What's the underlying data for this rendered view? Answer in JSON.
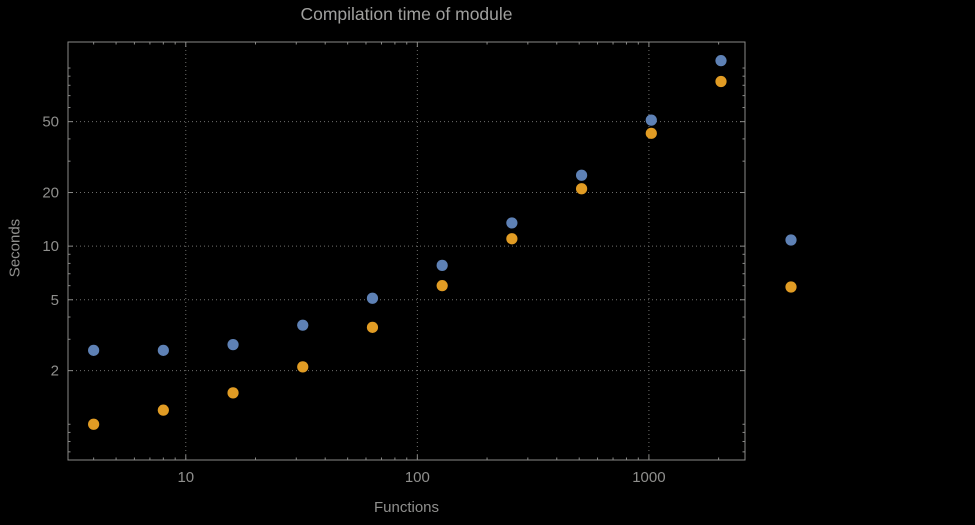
{
  "chart_data": {
    "type": "scatter",
    "title": "Compilation time of module",
    "xlabel": "Functions",
    "ylabel": "Seconds",
    "x_scale": "log",
    "y_scale": "log",
    "grid": true,
    "x": [
      4,
      8,
      16,
      32,
      64,
      128,
      256,
      512,
      1024,
      2048
    ],
    "series": [
      {
        "name": "blue",
        "color": "#5e81b5",
        "values": [
          2.6,
          2.6,
          2.8,
          3.6,
          5.1,
          7.8,
          13.5,
          25,
          51,
          110
        ]
      },
      {
        "name": "orange",
        "color": "#e19c24",
        "values": [
          1.0,
          1.2,
          1.5,
          2.1,
          3.5,
          6.0,
          11,
          21,
          43,
          84
        ]
      }
    ],
    "x_ticks": [
      10,
      100,
      1000
    ],
    "y_ticks": [
      2,
      5,
      10,
      20,
      50
    ],
    "x_range": [
      3.1,
      2600
    ],
    "y_range": [
      0.63,
      140
    ],
    "legend_position": "right"
  },
  "legend": {
    "marker_colors": [
      "#5e81b5",
      "#e19c24"
    ]
  },
  "style": {
    "background": "#000000",
    "text": "#8f8f8d",
    "title_text": "#a0a09e",
    "grid": "#6f6f6d",
    "frame": "#8a8a88"
  }
}
